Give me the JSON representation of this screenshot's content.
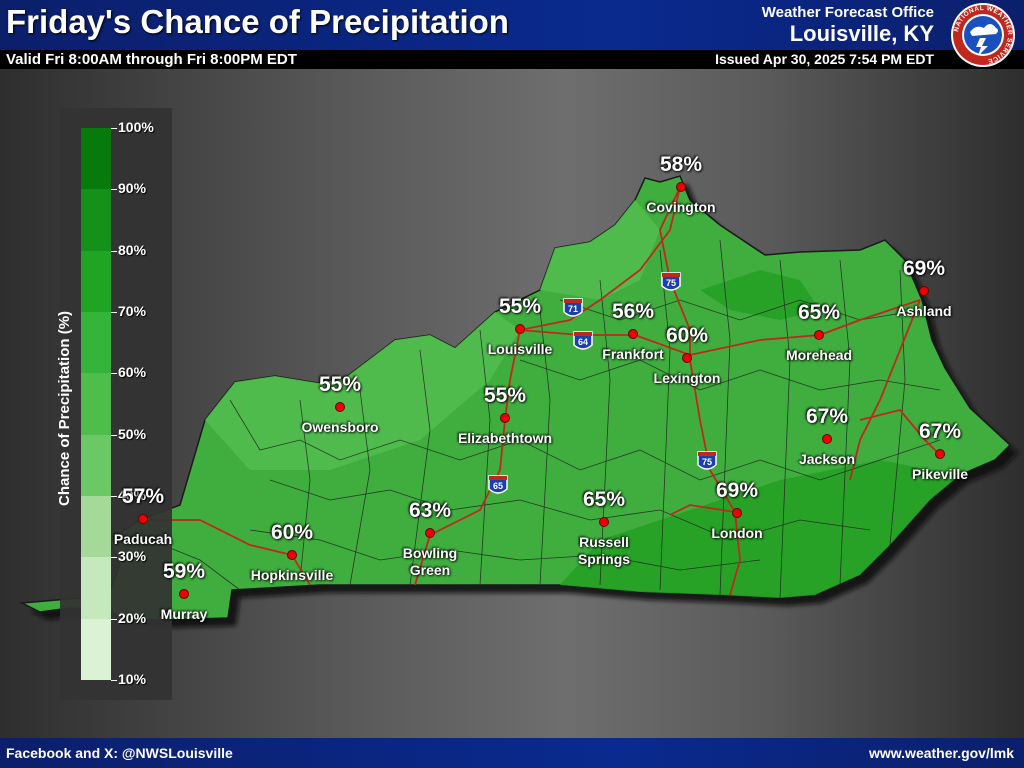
{
  "header": {
    "title": "Friday's Chance of Precipitation",
    "valid": "Valid Fri 8:00AM through Fri 8:00PM EDT",
    "office_line1": "Weather Forecast Office",
    "office_line2": "Louisville, KY",
    "issued": "Issued Apr 30, 2025 7:54 PM EDT",
    "logo_text": "NATIONAL WEATHER SERVICE"
  },
  "footer": {
    "social": "Facebook and X: @NWSLouisville",
    "url": "www.weather.gov/lmk"
  },
  "legend": {
    "title": "Chance of Precipitation (%)",
    "ticks": [
      "100%",
      "90%",
      "80%",
      "70%",
      "60%",
      "50%",
      "40%",
      "30%",
      "20%",
      "10%"
    ],
    "colors": [
      "#087a0b",
      "#15901a",
      "#1fa424",
      "#34b43a",
      "#4fbd4c",
      "#6cc765",
      "#a4d99a",
      "#c6e8bd",
      "#dcf2d5"
    ]
  },
  "cities": [
    {
      "name": "Covington",
      "pct": "58%"
    },
    {
      "name": "Ashland",
      "pct": "69%"
    },
    {
      "name": "Louisville",
      "pct": "55%"
    },
    {
      "name": "Frankfort",
      "pct": "56%"
    },
    {
      "name": "Lexington",
      "pct": "60%"
    },
    {
      "name": "Morehead",
      "pct": "65%"
    },
    {
      "name": "Owensboro",
      "pct": "55%"
    },
    {
      "name": "Elizabethtown",
      "pct": "55%"
    },
    {
      "name": "Jackson",
      "pct": "67%"
    },
    {
      "name": "Pikeville",
      "pct": "67%"
    },
    {
      "name": "Paducah",
      "pct": "57%"
    },
    {
      "name": "Hopkinsville",
      "pct": "60%"
    },
    {
      "name": "Bowling Green",
      "pct": "63%"
    },
    {
      "name": "Russell Springs",
      "pct": "65%"
    },
    {
      "name": "London",
      "pct": "69%"
    },
    {
      "name": "Murray",
      "pct": "59%"
    }
  ],
  "interstates": [
    "71",
    "75",
    "64",
    "65",
    "75"
  ]
}
